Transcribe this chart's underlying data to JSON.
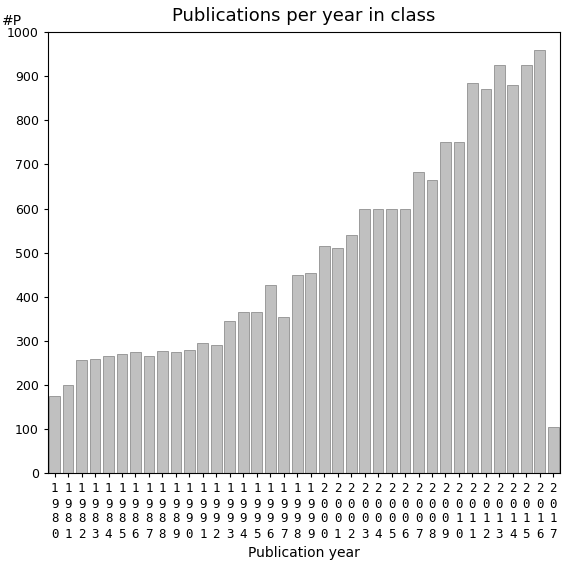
{
  "title": "Publications per year in class",
  "xlabel": "Publication year",
  "ylabel": "#P",
  "years": [
    "1980",
    "1981",
    "1982",
    "1983",
    "1984",
    "1985",
    "1986",
    "1987",
    "1988",
    "1989",
    "1990",
    "1991",
    "1992",
    "1993",
    "1994",
    "1995",
    "1996",
    "1997",
    "1998",
    "1999",
    "2000",
    "2001",
    "2002",
    "2003",
    "2004",
    "2005",
    "2006",
    "2007",
    "2008",
    "2009",
    "2010",
    "2011",
    "2012",
    "2013",
    "2014",
    "2015",
    "2016",
    "2017"
  ],
  "values": [
    175,
    200,
    258,
    260,
    265,
    270,
    275,
    265,
    278,
    275,
    280,
    295,
    290,
    345,
    365,
    365,
    428,
    355,
    450,
    455,
    515,
    510,
    540,
    600,
    600,
    600,
    600,
    682,
    665,
    750,
    750,
    885,
    870,
    925,
    880,
    925,
    960,
    105
  ],
  "bar_color": "#c0c0c0",
  "bar_edgecolor": "#808080",
  "ylim": [
    0,
    1000
  ],
  "yticks": [
    0,
    100,
    200,
    300,
    400,
    500,
    600,
    700,
    800,
    900,
    1000
  ],
  "background_color": "#ffffff",
  "title_fontsize": 13,
  "axis_fontsize": 10,
  "tick_fontsize": 9
}
